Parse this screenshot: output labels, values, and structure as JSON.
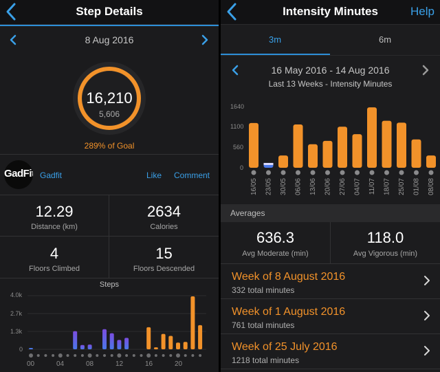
{
  "left": {
    "title": "Step Details",
    "date": "8 Aug 2016",
    "steps_value": "16,210",
    "goal_value": "5,606",
    "goal_text": "289% of Goal",
    "goal_fraction": 1.0,
    "source": {
      "logo_text": "GadFit",
      "name": "Gadfit",
      "like": "Like",
      "comment": "Comment"
    },
    "stats": [
      {
        "value": "12.29",
        "label": "Distance (km)"
      },
      {
        "value": "2634",
        "label": "Calories"
      },
      {
        "value": "4",
        "label": "Floors Climbed"
      },
      {
        "value": "15",
        "label": "Floors Descended"
      }
    ]
  },
  "right": {
    "title": "Intensity Minutes",
    "help": "Help",
    "tabs": [
      {
        "label": "3m",
        "active": true
      },
      {
        "label": "6m",
        "active": false
      }
    ],
    "range": "16 May 2016 - 14 Aug 2016",
    "subtitle": "Last 13 Weeks - Intensity Minutes",
    "averages_header": "Averages",
    "averages": [
      {
        "value": "636.3",
        "label": "Avg Moderate (min)"
      },
      {
        "value": "118.0",
        "label": "Avg Vigorous (min)"
      }
    ],
    "weeks": [
      {
        "title": "Week of 8 August 2016",
        "total": "332 total minutes"
      },
      {
        "title": "Week of 1 August 2016",
        "total": "761 total minutes"
      },
      {
        "title": "Week of 25 July 2016",
        "total": "1218 total minutes"
      }
    ]
  },
  "colors": {
    "accent": "#f2922a",
    "link": "#3aa0e8",
    "purple": "#7b4de0",
    "blue": "#4a78e8"
  },
  "chart_data": [
    {
      "type": "bar",
      "title": "Steps",
      "y_ticks": [
        "4.0k",
        "2.7k",
        "1.3k",
        "0"
      ],
      "x_ticks": [
        "00",
        "04",
        "08",
        "12",
        "16",
        "20"
      ],
      "ylim": [
        0,
        4000
      ],
      "hours": [
        0,
        1,
        2,
        3,
        4,
        5,
        6,
        7,
        8,
        9,
        10,
        11,
        12,
        13,
        14,
        15,
        16,
        17,
        18,
        19,
        20,
        21,
        22,
        23
      ],
      "values": [
        40,
        0,
        0,
        0,
        0,
        0,
        1350,
        320,
        350,
        0,
        1500,
        1200,
        700,
        850,
        0,
        0,
        1650,
        150,
        1150,
        1000,
        500,
        550,
        3950,
        1800
      ],
      "bar_colors": [
        "blue",
        "",
        "",
        "",
        "",
        "",
        "purple",
        "purple",
        "purple",
        "",
        "purple",
        "purple",
        "purple",
        "purple",
        "",
        "",
        "accent",
        "accent",
        "accent",
        "accent",
        "accent",
        "accent",
        "accent",
        "accent"
      ]
    },
    {
      "type": "bar",
      "title": "Last 13 Weeks - Intensity Minutes",
      "y_ticks": [
        "1640",
        "1100",
        "560",
        "0"
      ],
      "ylim": [
        0,
        1640
      ],
      "categories": [
        "16/05",
        "23/05",
        "30/05",
        "06/06",
        "13/06",
        "20/06",
        "27/06",
        "04/07",
        "11/07",
        "18/07",
        "25/07",
        "01/08",
        "08/08"
      ],
      "values": [
        1200,
        130,
        330,
        1160,
        630,
        720,
        1100,
        900,
        1620,
        1260,
        1210,
        760,
        330
      ],
      "selected_index": 1
    }
  ]
}
